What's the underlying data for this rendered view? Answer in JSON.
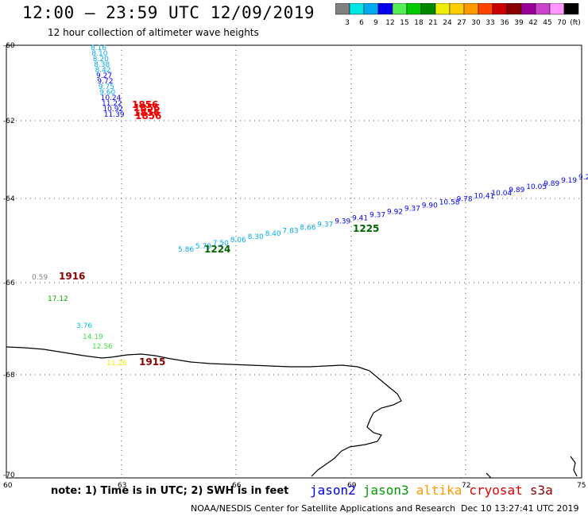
{
  "header": {
    "title": "12:00 – 23:59 UTC 12/09/2019",
    "subtitle": "12 hour collection of altimeter wave heights"
  },
  "colorbar": {
    "swatches": [
      "#808080",
      "#00e5e5",
      "#00aaee",
      "#0000ee",
      "#55ee55",
      "#00cc00",
      "#008800",
      "#eeee00",
      "#ffcc00",
      "#ff9900",
      "#ff4400",
      "#cc0000",
      "#880000",
      "#990099",
      "#cc44cc",
      "#ff99ff",
      "#000000"
    ],
    "labels": [
      "3",
      "6",
      "9",
      "12",
      "15",
      "18",
      "21",
      "24",
      "27",
      "30",
      "33",
      "36",
      "39",
      "42",
      "45",
      "70",
      "(ft)"
    ]
  },
  "axes": {
    "lat_ticks": [
      "-60",
      "-62",
      "-64",
      "-66",
      "-68",
      "-70"
    ],
    "lon_ticks": [
      "60",
      "63",
      "66",
      "69",
      "72",
      "75"
    ]
  },
  "tracks": {
    "cyan_column": [
      "8.16",
      "8.10",
      "8.20",
      "8.38",
      "8.42",
      "9.27",
      "9.72",
      "9.75",
      "9.60",
      "10.24",
      "11.22",
      "10.92",
      "11.39"
    ],
    "red_times": [
      "1856",
      "1856",
      "1856",
      "1856"
    ],
    "diagonal_values": [
      "5.86",
      "5.79",
      "7.50",
      "8.06",
      "8.30",
      "8.40",
      "7.83",
      "8.66",
      "9.37",
      "9.39",
      "9.41",
      "9.37",
      "9.92",
      "9.37",
      "9.90",
      "10.58",
      "9.78",
      "10.41",
      "10.04",
      "9.89",
      "10.05",
      "9.89",
      "9.19",
      "9.2"
    ],
    "time_1224": "1224",
    "time_1225": "1225",
    "low_values": [
      "0.59",
      "17.12",
      "3.76",
      "14.19",
      "12.56",
      "11.26"
    ],
    "time_1916": "1916",
    "time_1915": "1915"
  },
  "footer": {
    "note": "note: 1) Time is in UTC; 2) SWH is in feet",
    "missions": [
      {
        "name": "jason2",
        "color": "#0000ee"
      },
      {
        "name": "jason3",
        "color": "#009900"
      },
      {
        "name": "altika",
        "color": "#ff9900"
      },
      {
        "name": "cryosat",
        "color": "#dd0000"
      },
      {
        "name": "s3a",
        "color": "#880000"
      }
    ],
    "credit": "NOAA/NESDIS Center for Satellite Applications and Research",
    "timestamp": "Dec 10 13:27:41 UTC 2019"
  }
}
